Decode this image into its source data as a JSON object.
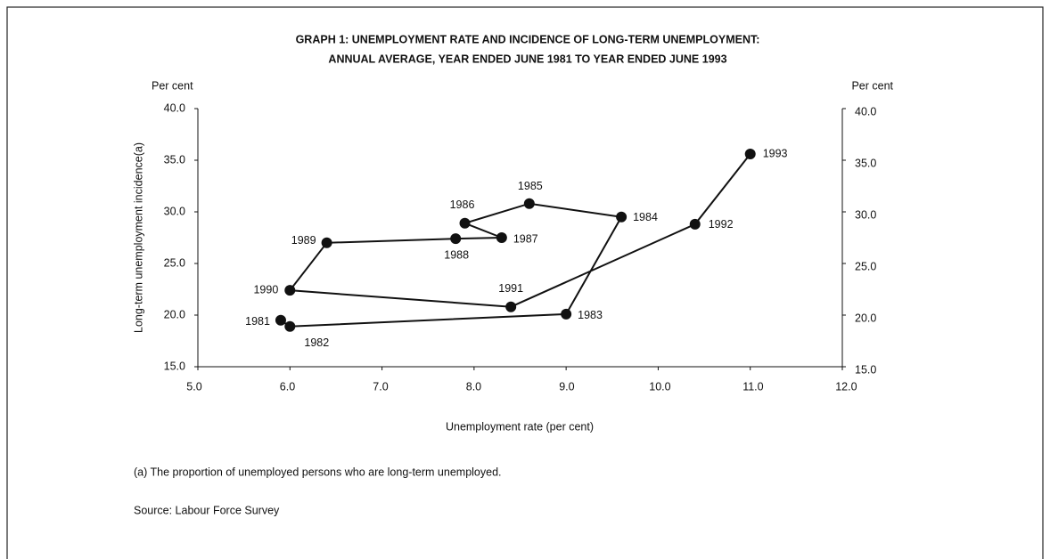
{
  "chart_data": {
    "type": "connected-scatter",
    "title": [
      "GRAPH 1: UNEMPLOYMENT RATE AND INCIDENCE OF LONG-TERM UNEMPLOYMENT:",
      "ANNUAL AVERAGE, YEAR ENDED JUNE 1981 TO YEAR ENDED JUNE 1993"
    ],
    "y_unit_left": "Per cent",
    "y_unit_right": "Per cent",
    "ylabel": "Long-term unemployment incidence(a)",
    "xlabel": "Unemployment rate (per cent)",
    "footnote": "(a) The proportion of unemployed persons who are long-term unemployed.",
    "source": "Source: Labour Force Survey",
    "labels": [
      "1981",
      "1982",
      "1983",
      "1984",
      "1985",
      "1986",
      "1987",
      "1988",
      "1989",
      "1990",
      "1991",
      "1992",
      "1993"
    ],
    "x": [
      5.9,
      6.0,
      9.0,
      9.6,
      8.6,
      7.9,
      8.3,
      7.8,
      6.4,
      6.0,
      8.4,
      10.4,
      11.0
    ],
    "values": [
      19.5,
      18.9,
      20.1,
      29.5,
      30.8,
      28.9,
      27.5,
      27.4,
      27.0,
      22.4,
      20.8,
      28.8,
      35.6
    ],
    "color": "#111111",
    "xlim": [
      5.0,
      12.0
    ],
    "xticks": [
      {
        "value": 5,
        "label": "5.0"
      },
      {
        "value": 6,
        "label": "6.0"
      },
      {
        "value": 7,
        "label": "7.0"
      },
      {
        "value": 8,
        "label": "8.0"
      },
      {
        "value": 9,
        "label": "9.0"
      },
      {
        "value": 10,
        "label": "10.0"
      },
      {
        "value": 11,
        "label": "11.0"
      },
      {
        "value": 12,
        "label": "12.0"
      }
    ],
    "ylim": [
      15.0,
      40.0
    ],
    "yticks": [
      {
        "value": 15,
        "label": "15.0"
      },
      {
        "value": 20,
        "label": "20.0"
      },
      {
        "value": 25,
        "label": "25.0"
      },
      {
        "value": 30,
        "label": "30.0"
      },
      {
        "value": 35,
        "label": "35.0"
      },
      {
        "value": 40,
        "label": "40.0"
      }
    ],
    "y2lim": [
      15.0,
      40.0
    ],
    "y2ticks": [
      {
        "value": 15,
        "label": "15.0"
      },
      {
        "value": 20,
        "label": "20.0"
      },
      {
        "value": 25,
        "label": "25.0"
      },
      {
        "value": 30,
        "label": "30.0"
      },
      {
        "value": 35,
        "label": "35.0"
      },
      {
        "value": 40,
        "label": "40.0"
      }
    ],
    "grid": false
  }
}
